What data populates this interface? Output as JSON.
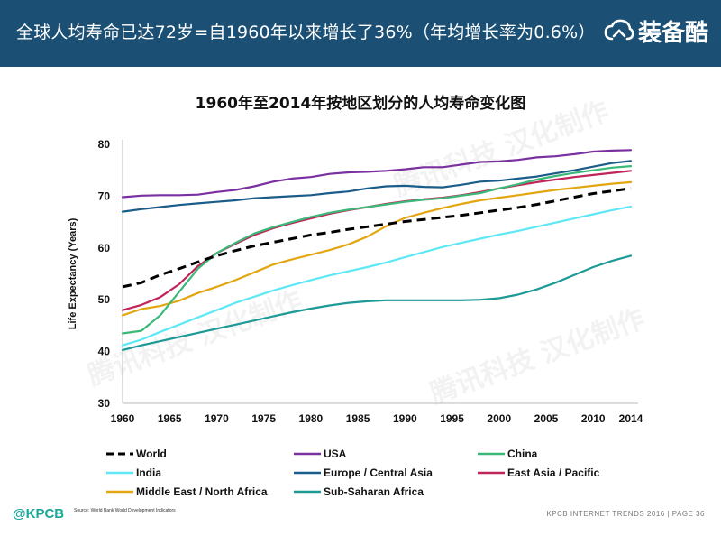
{
  "header": {
    "title": "全球人均寿命已达72岁=自1960年以来增长了36%（年均增长率为0.6%）",
    "brand": "装备酷",
    "logo_icon": "cloud-loop-icon"
  },
  "watermark": {
    "text": "腾讯科技 汉化制作"
  },
  "footer": {
    "brand": "@KPCB",
    "source": "Source: World Bank World Development Indicators",
    "right": "KPCB INTERNET TRENDS 2016  |  PAGE 36"
  },
  "colors": {
    "header_bg": "#1b4f73",
    "World": "#000000",
    "USA": "#7a30a0",
    "China": "#3cb878",
    "India": "#5ee8f5",
    "Europe / Central Asia": "#1a5d8a",
    "East Asia / Pacific": "#c0245a",
    "Middle East / North Africa": "#e2a611",
    "Sub-Saharan Africa": "#1d9a96"
  },
  "chart_data": {
    "type": "line",
    "title": "1960年至2014年按地区划分的人均寿命变化图",
    "xlabel": "",
    "ylabel": "Life Expectancy (Years)",
    "xlim": [
      1960,
      2014
    ],
    "ylim": [
      30,
      80
    ],
    "xticks": [
      1960,
      1965,
      1970,
      1975,
      1980,
      1985,
      1990,
      1995,
      2000,
      2005,
      2010,
      2014
    ],
    "yticks": [
      30,
      40,
      50,
      60,
      70,
      80
    ],
    "grid": false,
    "legend_position": "bottom",
    "x": [
      1960,
      1962,
      1964,
      1966,
      1968,
      1970,
      1972,
      1974,
      1976,
      1978,
      1980,
      1982,
      1984,
      1986,
      1988,
      1990,
      1992,
      1994,
      1996,
      1998,
      2000,
      2002,
      2004,
      2006,
      2008,
      2010,
      2012,
      2014
    ],
    "series": [
      {
        "name": "World",
        "style": "dashed",
        "values": [
          52.5,
          53.3,
          54.8,
          56.0,
          57.3,
          58.5,
          59.5,
          60.4,
          61.1,
          61.8,
          62.5,
          63.0,
          63.6,
          64.1,
          64.6,
          65.1,
          65.5,
          65.9,
          66.3,
          66.8,
          67.3,
          67.8,
          68.4,
          69.1,
          69.8,
          70.5,
          71.0,
          71.5
        ]
      },
      {
        "name": "USA",
        "values": [
          69.8,
          70.1,
          70.2,
          70.2,
          70.3,
          70.8,
          71.2,
          71.9,
          72.8,
          73.4,
          73.7,
          74.3,
          74.6,
          74.7,
          74.9,
          75.2,
          75.6,
          75.6,
          76.1,
          76.6,
          76.7,
          77.0,
          77.5,
          77.7,
          78.1,
          78.6,
          78.8,
          78.9
        ]
      },
      {
        "name": "China",
        "values": [
          43.5,
          44.0,
          47.0,
          51.5,
          56.0,
          59.0,
          61.0,
          62.8,
          64.0,
          65.0,
          66.0,
          66.8,
          67.4,
          67.9,
          68.4,
          68.9,
          69.3,
          69.6,
          70.1,
          70.6,
          71.5,
          72.3,
          73.2,
          73.9,
          74.5,
          75.0,
          75.5,
          75.8
        ]
      },
      {
        "name": "India",
        "values": [
          41.2,
          42.3,
          43.8,
          45.2,
          46.6,
          48.0,
          49.4,
          50.6,
          51.8,
          52.8,
          53.8,
          54.7,
          55.5,
          56.3,
          57.2,
          58.2,
          59.2,
          60.2,
          61.0,
          61.8,
          62.6,
          63.3,
          64.1,
          64.9,
          65.7,
          66.5,
          67.3,
          68.0
        ]
      },
      {
        "name": "Europe / Central Asia",
        "values": [
          67.0,
          67.5,
          67.9,
          68.3,
          68.6,
          68.9,
          69.2,
          69.6,
          69.8,
          70.0,
          70.2,
          70.6,
          70.9,
          71.5,
          71.9,
          72.0,
          71.8,
          71.7,
          72.2,
          72.8,
          73.0,
          73.4,
          73.8,
          74.4,
          75.0,
          75.7,
          76.4,
          76.8
        ]
      },
      {
        "name": "East Asia / Pacific",
        "values": [
          48.0,
          49.0,
          50.5,
          53.0,
          56.5,
          59.0,
          60.8,
          62.5,
          63.8,
          64.8,
          65.7,
          66.6,
          67.3,
          67.9,
          68.5,
          69.0,
          69.4,
          69.7,
          70.2,
          70.8,
          71.5,
          72.1,
          72.7,
          73.2,
          73.7,
          74.1,
          74.5,
          74.9
        ]
      },
      {
        "name": "Middle East / North Africa",
        "values": [
          47.0,
          48.2,
          48.8,
          49.8,
          51.3,
          52.5,
          53.8,
          55.3,
          56.8,
          57.8,
          58.7,
          59.6,
          60.7,
          62.2,
          64.2,
          65.8,
          66.8,
          67.7,
          68.5,
          69.2,
          69.7,
          70.2,
          70.7,
          71.2,
          71.6,
          72.0,
          72.4,
          72.7
        ]
      },
      {
        "name": "Sub-Saharan Africa",
        "values": [
          40.3,
          41.2,
          42.0,
          42.8,
          43.6,
          44.4,
          45.2,
          46.0,
          46.8,
          47.6,
          48.3,
          48.9,
          49.4,
          49.7,
          49.9,
          49.9,
          49.9,
          49.9,
          49.9,
          50.0,
          50.3,
          51.0,
          52.0,
          53.3,
          54.8,
          56.3,
          57.5,
          58.5
        ]
      }
    ]
  }
}
